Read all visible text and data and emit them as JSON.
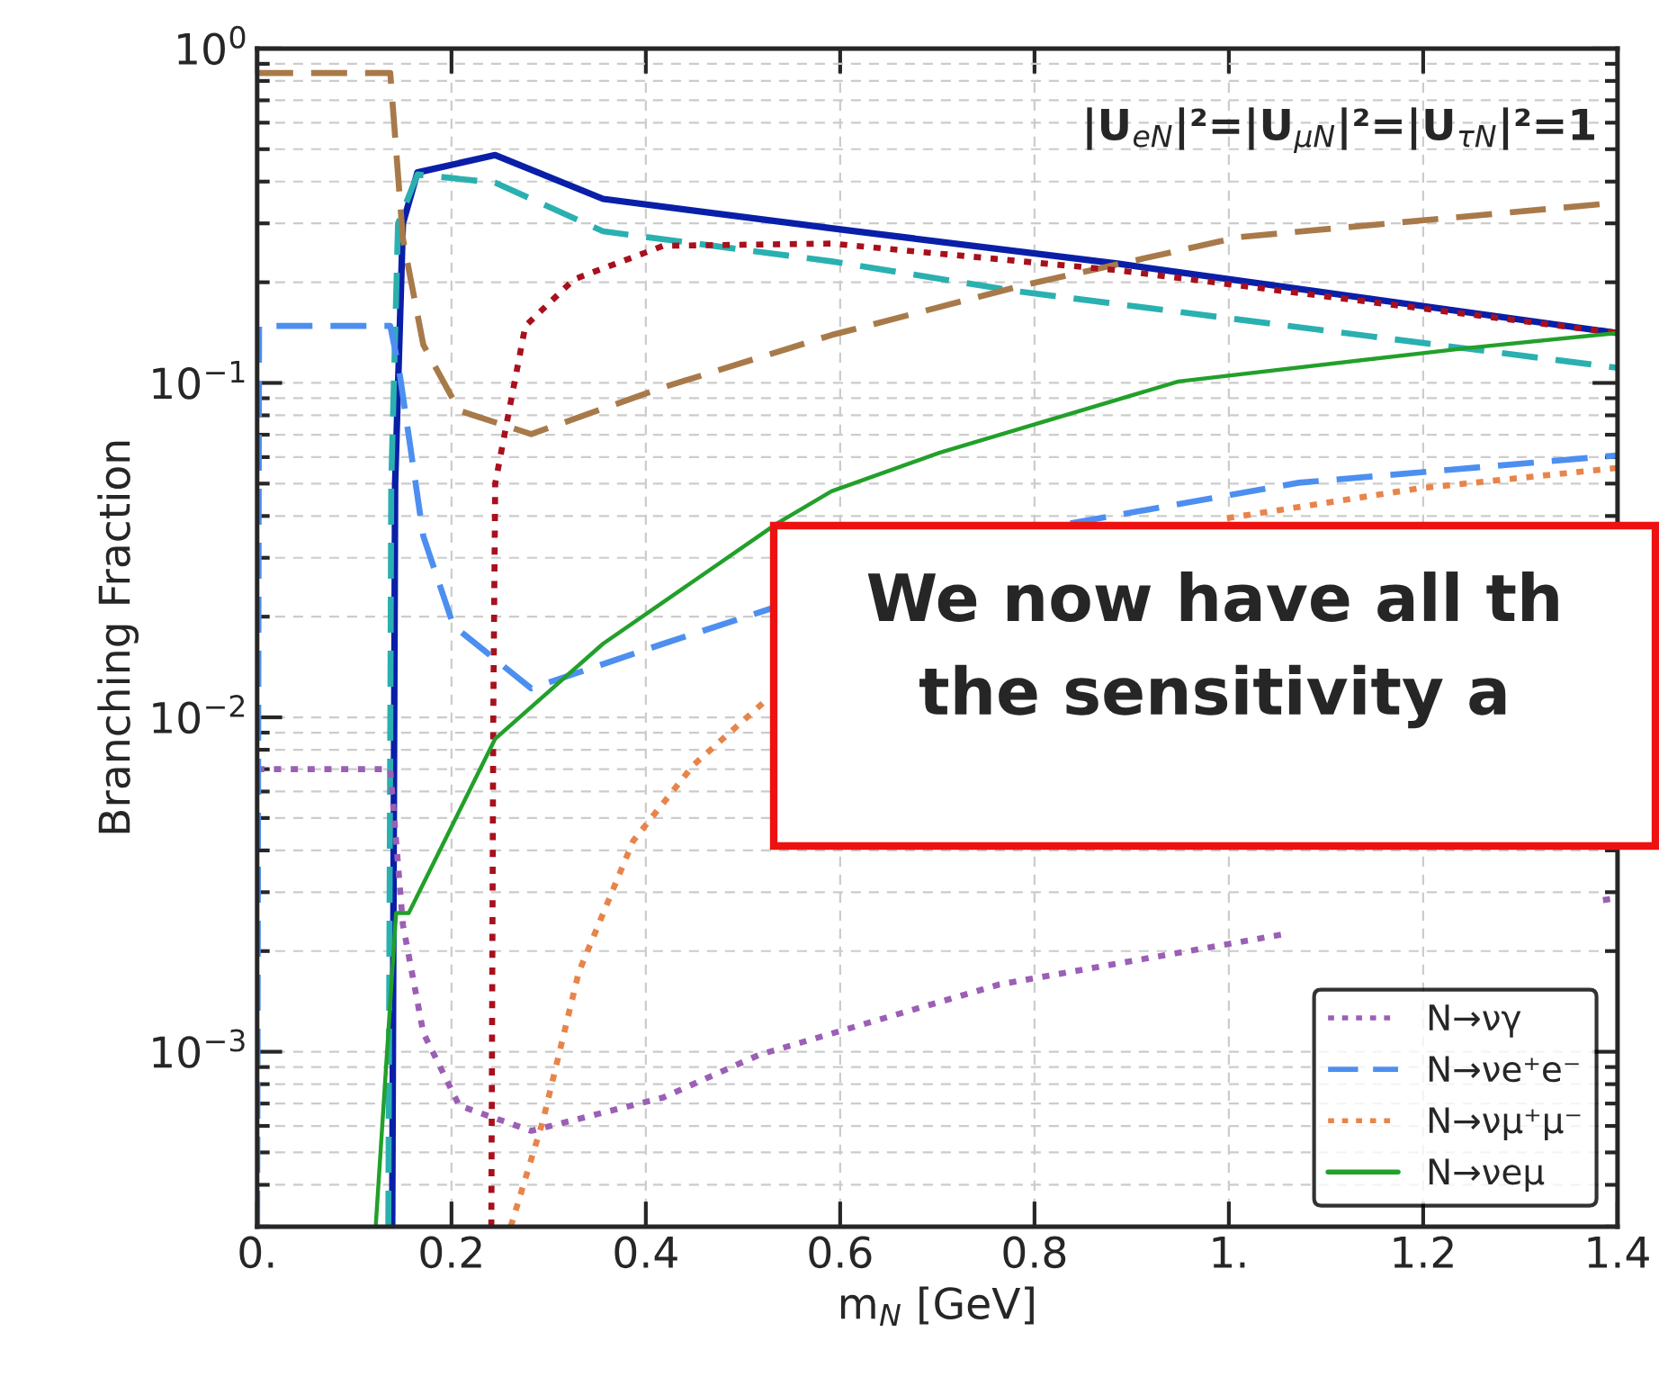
{
  "chart_data": {
    "type": "line",
    "xlabel": "m$_{N}$ [GeV]",
    "ylabel": "Branching Fraction",
    "annotations": [
      "|U$_{eN}$|²=|U$_{μN}$|²=|U$_{τN}$|²=1",
      "We now have all th",
      "the sensitivity a"
    ],
    "xlim": [
      0,
      1.4
    ],
    "ylim": [
      0.0003,
      1
    ],
    "log": "y",
    "xticks": [
      {
        "value": 0,
        "label": "0."
      },
      0.2,
      0.4,
      0.6,
      0.8,
      {
        "value": 1,
        "label": "1."
      },
      1.2,
      1.4
    ],
    "yticks": [
      {
        "value": 0.001,
        "label": "10$^{−3}$"
      },
      {
        "value": 0.01,
        "label": "10$^{−2}$"
      },
      {
        "value": 0.1,
        "label": "10$^{−1}$"
      },
      {
        "value": 1,
        "label": "10$^{0}$"
      }
    ],
    "grid": true,
    "legend": "bottom right",
    "marker": "none",
    "series": [
      {
        "color": "#0a1fa8",
        "line_style": "solid",
        "x": [
          0.139,
          0.142,
          0.15,
          0.165,
          0.245,
          0.356,
          0.591,
          0.887,
          1.4
        ],
        "values": [
          0.0003,
          0.05,
          0.3,
          0.426,
          0.48,
          0.355,
          0.29,
          0.227,
          0.141
        ]
      },
      {
        "color": "#2ab0b0",
        "line_style": "dashed",
        "x": [
          0.135,
          0.138,
          0.145,
          0.165,
          0.245,
          0.356,
          0.591,
          0.782,
          1.4
        ],
        "values": [
          0.0003,
          0.05,
          0.3,
          0.42,
          0.397,
          0.284,
          0.231,
          0.188,
          0.111
        ]
      },
      {
        "color": "#a87a4a",
        "line_style": "dashed",
        "x": [
          0,
          0.137,
          0.15,
          0.171,
          0.208,
          0.282,
          0.418,
          0.591,
          0.789,
          1.011,
          1.4
        ],
        "values": [
          0.845,
          0.845,
          0.27,
          0.13,
          0.0826,
          0.0703,
          0.097,
          0.139,
          0.196,
          0.273,
          0.346
        ]
      },
      {
        "color": "#a8101c",
        "line_style": "dotted",
        "x": [
          0.241,
          0.243,
          0.245,
          0.258,
          0.276,
          0.326,
          0.418,
          0.591,
          0.887,
          1.4
        ],
        "values": [
          0.0003,
          0.01,
          0.05,
          0.079,
          0.148,
          0.204,
          0.257,
          0.261,
          0.217,
          0.141
        ]
      },
      {
        "name": "N→νγ",
        "color": "#9b5fb5",
        "line_style": "dotted",
        "x": [
          0,
          0.137,
          0.15,
          0.171,
          0.208,
          0.282,
          0.418,
          0.517,
          0.764,
          1.054,
          1.07,
          1.385,
          1.4
        ],
        "values": [
          0.007,
          0.007,
          0.0024,
          0.00114,
          0.00069,
          0.00058,
          0.00073,
          0.00098,
          0.00159,
          0.00224,
          null,
          0.00284,
          0.00288
        ]
      },
      {
        "name": "N→νe⁺e⁻",
        "color": "#4d8ff0",
        "line_style": "dashed",
        "x": [
          0,
          0.002,
          0.137,
          0.146,
          0.171,
          0.202,
          0.282,
          0.418,
          0.53,
          0.6,
          0.8,
          0.837,
          1.072,
          1.4
        ],
        "values": [
          0.0003,
          0.148,
          0.148,
          0.11,
          0.0348,
          0.0188,
          0.0122,
          0.0166,
          0.0212,
          null,
          null,
          0.038,
          0.0503,
          0.0607
        ]
      },
      {
        "name": "N→νμ⁺μ⁻",
        "color": "#e8844a",
        "line_style": "dotted",
        "x": [
          0.261,
          0.294,
          0.331,
          0.387,
          0.449,
          0.523,
          0.6,
          0.9,
          0.998,
          1.196,
          1.4
        ],
        "values": [
          0.0003,
          0.00062,
          0.00173,
          0.00427,
          0.0072,
          0.0112,
          null,
          null,
          0.0394,
          0.0484,
          0.0557
        ]
      },
      {
        "name": "N→νeμ",
        "color": "#22a02a",
        "line_style": "solid",
        "x": [
          0.122,
          0.143,
          0.156,
          0.245,
          0.356,
          0.535,
          0.591,
          0.702,
          0.948,
          1.244,
          1.4
        ],
        "values": [
          0.0003,
          0.0026,
          0.0026,
          0.00863,
          0.0166,
          0.038,
          0.0474,
          0.0618,
          0.101,
          0.127,
          0.141
        ]
      }
    ]
  }
}
